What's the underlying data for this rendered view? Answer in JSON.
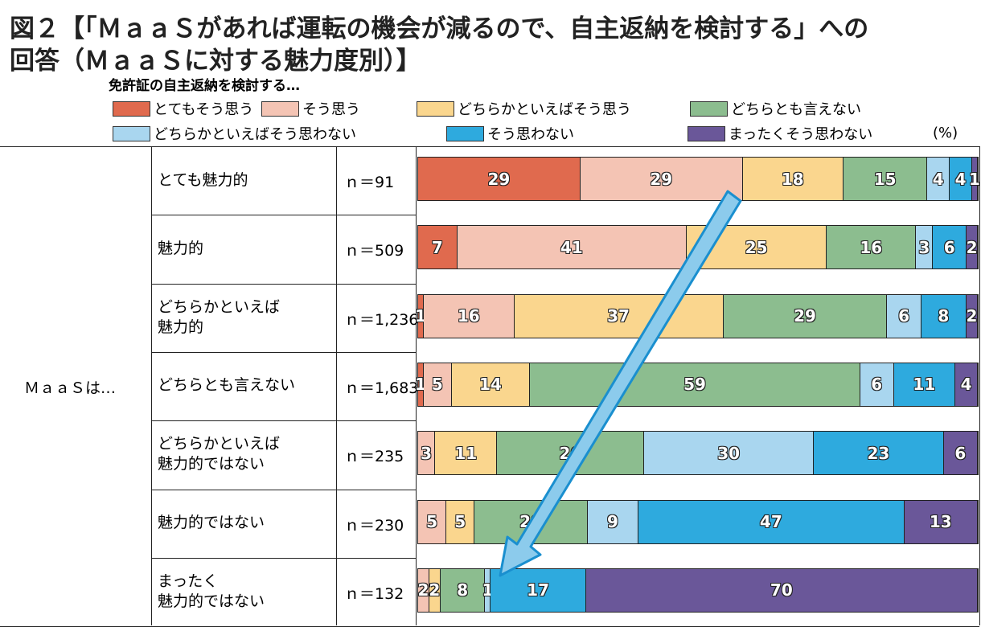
{
  "title_line1": "図２【「ＭａａＳがあれば運転の機会が減るので、自主返納を検討する」への",
  "title_line2": "回答（ＭａａＳに対する魅力度別）】",
  "chart_data": {
    "type": "bar",
    "orientation": "horizontal-stacked-100",
    "subtitle": "免許証の自主返納を検討する…",
    "unit": "(%)",
    "group_label": "ＭａａＳは…",
    "legend": [
      "とてもそう思う",
      "そう思う",
      "どちらかといえばそう思う",
      "どちらとも言えない",
      "どちらかといえばそう思わない",
      "そう思わない",
      "まったくそう思わない"
    ],
    "colors": [
      "#e06a4e",
      "#f4c4b4",
      "#fad68e",
      "#8cbd8f",
      "#a9d6ef",
      "#2eaade",
      "#6a5799"
    ],
    "categories": [
      "とても魅力的",
      "魅力的",
      "どちらかといえば\n魅力的",
      "どちらとも言えない",
      "どちらかといえば\n魅力的ではない",
      "魅力的ではない",
      "まったく\n魅力的ではない"
    ],
    "n": [
      "ｎ＝91",
      "ｎ＝509",
      "ｎ＝1,236",
      "ｎ＝1,683",
      "ｎ＝235",
      "ｎ＝230",
      "ｎ＝132"
    ],
    "values": [
      [
        29,
        29,
        18,
        15,
        4,
        4,
        1
      ],
      [
        7,
        41,
        25,
        16,
        3,
        6,
        2
      ],
      [
        1,
        16,
        37,
        29,
        6,
        8,
        2
      ],
      [
        1,
        5,
        14,
        59,
        6,
        11,
        4
      ],
      [
        0,
        3,
        11,
        26,
        30,
        23,
        6
      ],
      [
        0,
        5,
        5,
        20,
        9,
        47,
        13
      ],
      [
        0,
        2,
        2,
        8,
        1,
        17,
        70
      ]
    ],
    "annotation": "blue arrow from top row toward bottom-row 'そう思わない'"
  }
}
